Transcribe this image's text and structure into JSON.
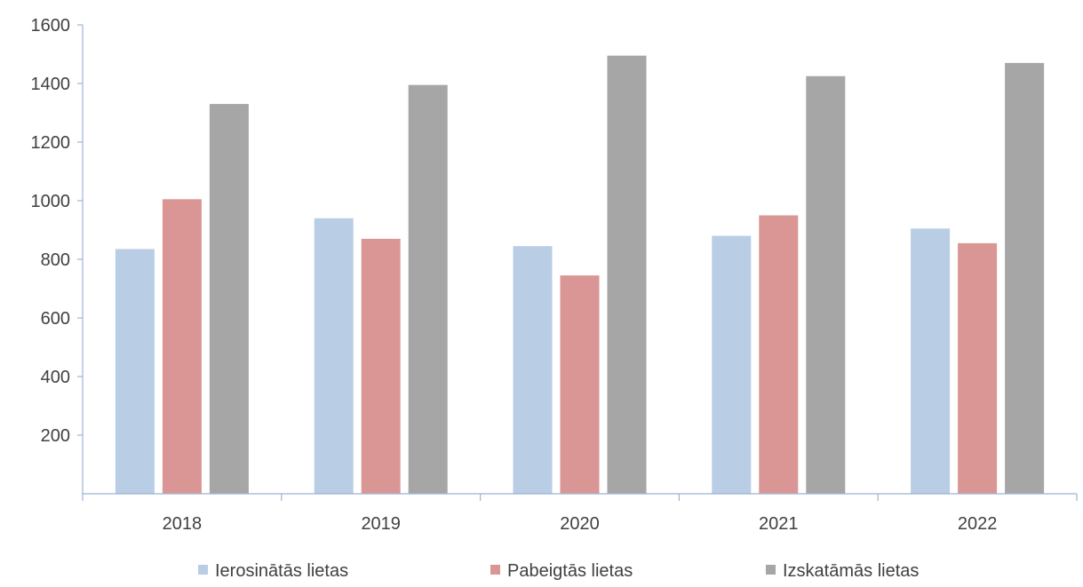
{
  "chart_data": {
    "type": "bar",
    "title": "",
    "xlabel": "",
    "ylabel": "",
    "categories": [
      "2018",
      "2019",
      "2020",
      "2021",
      "2022"
    ],
    "ylim": [
      0,
      1600
    ],
    "yticks": [
      "200",
      "400",
      "600",
      "800",
      "1000",
      "1200",
      "1400",
      "1600"
    ],
    "grid": false,
    "legend_position": "bottom",
    "series": [
      {
        "name": "Ierosinātās lietas",
        "color": "#b9cde5",
        "values": [
          835,
          940,
          845,
          880,
          905
        ]
      },
      {
        "name": "Pabeigtās lietas",
        "color": "#d99694",
        "values": [
          1005,
          870,
          745,
          950,
          855
        ]
      },
      {
        "name": "Izskatāmās lietas",
        "color": "#a6a6a6",
        "values": [
          1330,
          1395,
          1495,
          1425,
          1470
        ]
      }
    ]
  }
}
